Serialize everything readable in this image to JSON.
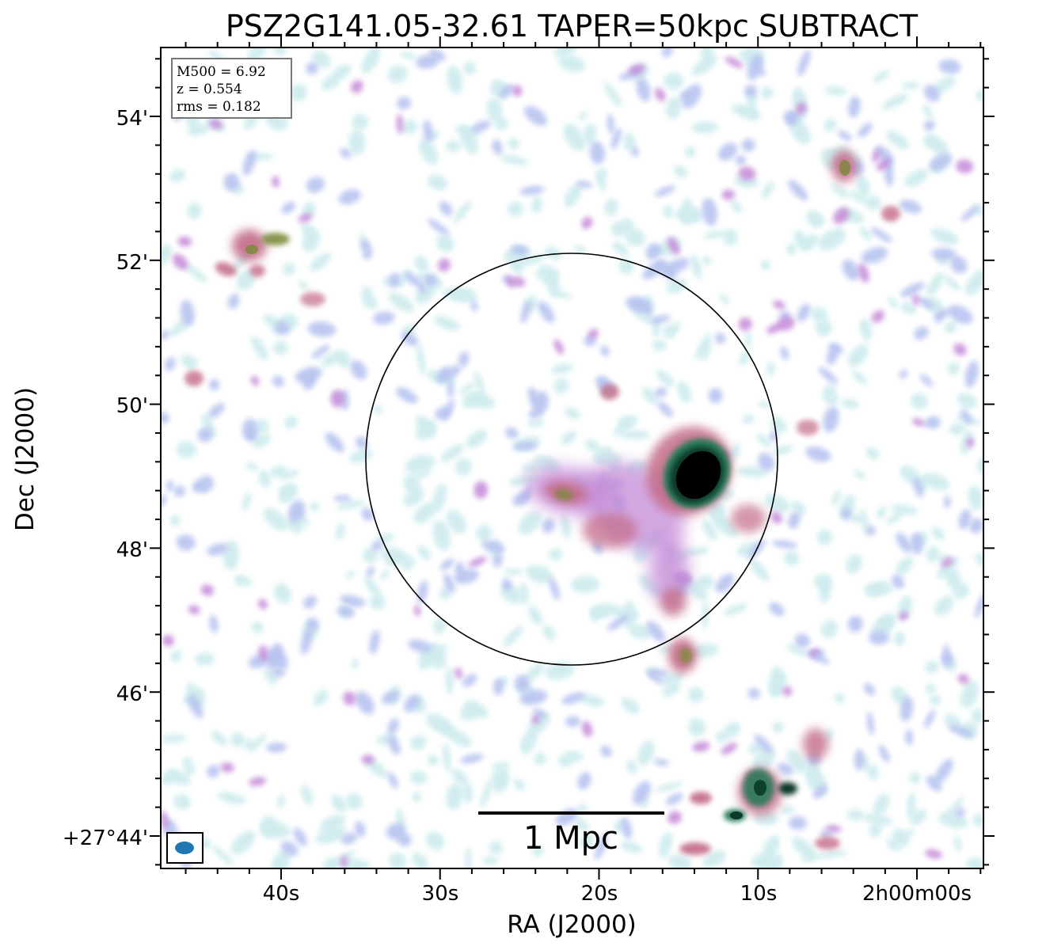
{
  "title": "PSZ2G141.05-32.61 TAPER=50kpc SUBTRACT",
  "axes": {
    "xlabel": "RA (J2000)",
    "ylabel": "Dec (J2000)",
    "x_ticks": [
      "40s",
      "30s",
      "20s",
      "10s",
      "2h00m00s"
    ],
    "y_ticks": [
      "54'",
      "52'",
      "50'",
      "48'",
      "46'",
      "+27°44'"
    ]
  },
  "info_box": {
    "lines": [
      "M500 = 6.92",
      "z = 0.554",
      "rms = 0.182"
    ]
  },
  "scale_bar": {
    "label": "1 Mpc"
  },
  "colormap": [
    "#ffffff",
    "#d0ecee",
    "#b8c4f0",
    "#c58ad8",
    "#c36a86",
    "#7a8a3a",
    "#2c7a5a",
    "#0a3a2a",
    "#000000"
  ],
  "beam_color": "#1f77b4",
  "circle_color": "#000000"
}
